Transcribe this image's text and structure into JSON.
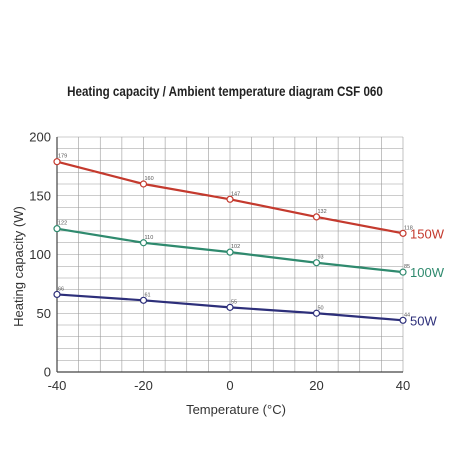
{
  "chart_data": {
    "type": "line",
    "title": "Heating capacity / Ambient temperature diagram CSF 060",
    "xlabel": "Temperature (°C)",
    "ylabel": "Heating capacity (W)",
    "x": [
      -40,
      -20,
      0,
      20,
      40
    ],
    "xlim": [
      -40,
      40
    ],
    "ylim": [
      0,
      200
    ],
    "xticks": [
      "-40",
      "-20",
      "0",
      "20",
      "40"
    ],
    "yticks": [
      "0",
      "50",
      "100",
      "150",
      "200"
    ],
    "grid": true,
    "legend_position": "right end of each line",
    "series": [
      {
        "name": "150W",
        "color": "#c43a2e",
        "values": [
          179,
          160,
          147,
          132,
          118
        ],
        "labels": [
          "179",
          "160",
          "147",
          "132",
          "118"
        ]
      },
      {
        "name": "100W",
        "color": "#2f8a6e",
        "values": [
          122,
          110,
          102,
          93,
          85
        ],
        "labels": [
          "122",
          "110",
          "102",
          "93",
          "85"
        ]
      },
      {
        "name": "50W",
        "color": "#2d2f7a",
        "values": [
          66,
          61,
          55,
          50,
          44
        ],
        "labels": [
          "66",
          "61",
          "55",
          "50",
          "44"
        ]
      }
    ]
  }
}
